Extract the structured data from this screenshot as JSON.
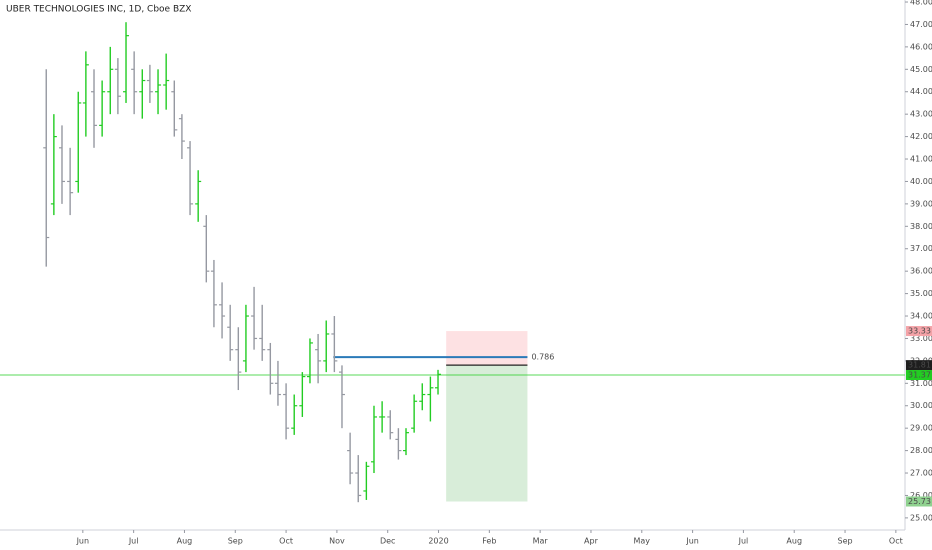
{
  "chart_data": {
    "type": "ohlc",
    "title": "UBER TECHNOLOGIES INC, 1D, Cboe BZX",
    "up_color": "#22cc22",
    "down_color": "#9598a1",
    "x": [
      5.28,
      5.43,
      5.59,
      5.75,
      5.91,
      6.06,
      6.22,
      6.38,
      6.54,
      6.69,
      6.85,
      7.01,
      7.17,
      7.32,
      7.48,
      7.64,
      7.8,
      7.95,
      8.11,
      8.27,
      8.43,
      8.58,
      8.74,
      8.9,
      9.06,
      9.21,
      9.37,
      9.53,
      9.69,
      9.84,
      10.0,
      10.16,
      10.32,
      10.47,
      10.63,
      10.79,
      10.95,
      11.1,
      11.26,
      11.42,
      11.58,
      11.73,
      11.89,
      12.05,
      12.21,
      12.36,
      12.52,
      12.68,
      12.84,
      12.99
    ],
    "open": [
      41.5,
      39,
      41.5,
      40,
      40,
      43.5,
      44,
      42.5,
      44,
      45,
      44,
      45,
      44,
      44.5,
      44,
      44.3,
      44,
      42.8,
      41.5,
      39,
      38,
      36,
      34.5,
      33.5,
      32.5,
      32,
      34,
      33,
      32.5,
      31,
      30.5,
      29,
      30,
      31.3,
      32.5,
      32,
      33.2,
      31.5,
      28,
      27,
      26.2,
      27.5,
      29.5,
      29.5,
      28.5,
      28,
      29,
      30.2,
      30.5,
      30.8
    ],
    "high": [
      45,
      43,
      42.5,
      41.5,
      44,
      45.8,
      45,
      44.5,
      46,
      45.5,
      47.1,
      45.8,
      45,
      45.2,
      45,
      45.7,
      44.5,
      43,
      41.8,
      40.5,
      38.5,
      36.5,
      35.5,
      34.5,
      33.5,
      34.5,
      35.3,
      34.5,
      32.8,
      32,
      31,
      30.5,
      31.5,
      33,
      33.2,
      33.8,
      34,
      31.8,
      28.8,
      27.8,
      27.5,
      30,
      30.2,
      29.8,
      29,
      29,
      30.5,
      31,
      31.3,
      31.6
    ],
    "low": [
      36.2,
      38.5,
      39,
      38.5,
      39.5,
      42,
      41.5,
      42,
      43,
      43,
      43.5,
      43,
      42.8,
      43.5,
      43,
      43.2,
      42,
      41,
      38.5,
      38.2,
      35.5,
      33.5,
      33,
      32,
      30.7,
      31.5,
      32.5,
      32,
      30.5,
      30,
      28.5,
      28.7,
      29.5,
      31,
      31,
      31.5,
      31.5,
      29,
      26.5,
      25.7,
      25.8,
      27,
      28.8,
      28.5,
      27.6,
      27.8,
      28.8,
      29.8,
      29.3,
      30.5
    ],
    "close": [
      37.5,
      42,
      40,
      39.5,
      43.5,
      45.2,
      42.5,
      44,
      45,
      43.8,
      46.5,
      44,
      44.5,
      44,
      44.3,
      44.5,
      42.3,
      41.8,
      39,
      40,
      36,
      34.5,
      34,
      32.5,
      31.5,
      34,
      33,
      32.5,
      31,
      30.5,
      29,
      30,
      31.3,
      32.8,
      32,
      33.2,
      32,
      30.5,
      27,
      26,
      27.3,
      29.5,
      29.5,
      28.8,
      28,
      28.8,
      30.2,
      30.5,
      30.8,
      31.4
    ],
    "xlim": [
      4.37,
      22.18
    ],
    "xticks": [
      {
        "value": 6,
        "label": "Jun"
      },
      {
        "value": 7,
        "label": "Jul"
      },
      {
        "value": 8,
        "label": "Aug"
      },
      {
        "value": 9,
        "label": "Sep"
      },
      {
        "value": 10,
        "label": "Oct"
      },
      {
        "value": 11,
        "label": "Nov"
      },
      {
        "value": 12,
        "label": "Dec"
      },
      {
        "value": 13,
        "label": "2020"
      },
      {
        "value": 14,
        "label": "Feb"
      },
      {
        "value": 15,
        "label": "Mar"
      },
      {
        "value": 16,
        "label": "Apr"
      },
      {
        "value": 17,
        "label": "May"
      },
      {
        "value": 18,
        "label": "Jun"
      },
      {
        "value": 19,
        "label": "Jul"
      },
      {
        "value": 20,
        "label": "Aug"
      },
      {
        "value": 21,
        "label": "Sep"
      },
      {
        "value": 22,
        "label": "Oct"
      }
    ],
    "ylim": [
      24.46,
      48.09
    ],
    "yticks": [
      {
        "value": 25,
        "label": "25.00"
      },
      {
        "value": 26,
        "label": "26.00"
      },
      {
        "value": 27,
        "label": "27.00"
      },
      {
        "value": 28,
        "label": "28.00"
      },
      {
        "value": 29,
        "label": "29.00"
      },
      {
        "value": 30,
        "label": "30.00"
      },
      {
        "value": 31,
        "label": "31.00"
      },
      {
        "value": 32,
        "label": "32.00"
      },
      {
        "value": 33,
        "label": "33.00"
      },
      {
        "value": 34,
        "label": "34.00"
      },
      {
        "value": 35,
        "label": "35.00"
      },
      {
        "value": 36,
        "label": "36.00"
      },
      {
        "value": 37,
        "label": "37.00"
      },
      {
        "value": 38,
        "label": "38.00"
      },
      {
        "value": 39,
        "label": "39.00"
      },
      {
        "value": 40,
        "label": "40.00"
      },
      {
        "value": 41,
        "label": "41.00"
      },
      {
        "value": 42,
        "label": "42.00"
      },
      {
        "value": 43,
        "label": "43.00"
      },
      {
        "value": 44,
        "label": "44.00"
      },
      {
        "value": 45,
        "label": "45.00"
      },
      {
        "value": 46,
        "label": "46.00"
      },
      {
        "value": 47,
        "label": "47.00"
      },
      {
        "value": 48,
        "label": "48.00"
      }
    ],
    "last_price": 31.37,
    "last_color": "#22cc22",
    "fib": {
      "level": 0.786,
      "price": 32.17,
      "x": [
        10.93,
        14.75
      ],
      "color": "#2a7ab8"
    },
    "position": {
      "stop": 33.33,
      "entry": 31.81,
      "target": 25.73,
      "x": [
        13.15,
        14.75
      ]
    }
  }
}
